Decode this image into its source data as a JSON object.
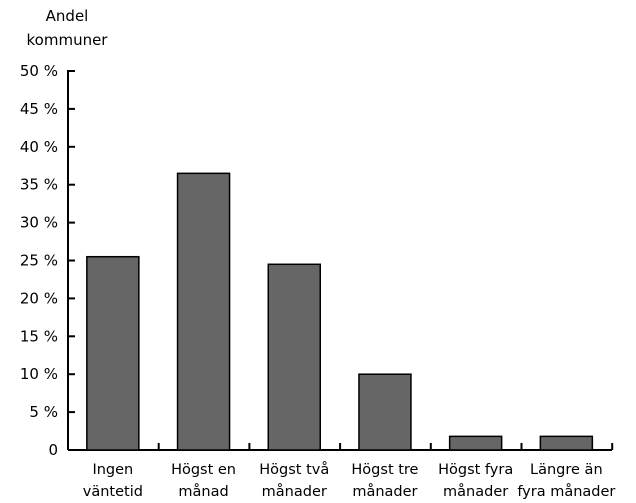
{
  "chart_data": {
    "type": "bar",
    "title": "",
    "xlabel": "",
    "ylabel": [
      "Andel",
      "kommuner"
    ],
    "categories": [
      [
        "Ingen",
        "väntetid"
      ],
      [
        "Högst en",
        "månad"
      ],
      [
        "Högst två",
        "månader"
      ],
      [
        "Högst tre",
        "månader"
      ],
      [
        "Högst fyra",
        "månader"
      ],
      [
        "Längre än",
        "fyra månader"
      ]
    ],
    "values": [
      25.5,
      36.5,
      24.5,
      10,
      1.8,
      1.8
    ],
    "ylim": [
      0,
      50
    ],
    "yticks": [
      "0",
      "5 %",
      "10 %",
      "15 %",
      "20 %",
      "25 %",
      "30 %",
      "35 %",
      "40 %",
      "45 %",
      "50 %"
    ],
    "grid": false,
    "bar_color": "#666666",
    "bar_stroke": "#000000"
  }
}
